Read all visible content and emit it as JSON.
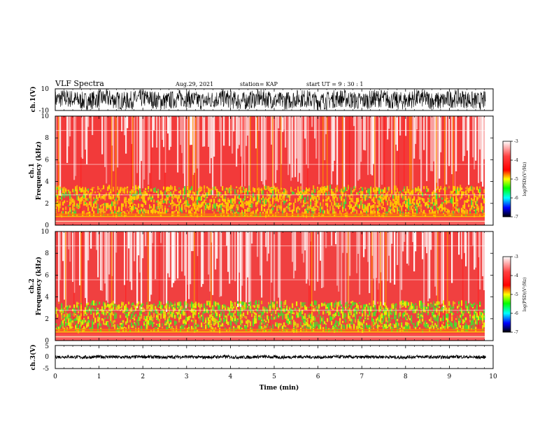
{
  "header": {
    "title": "VLF Spectra",
    "date": "Aug.29, 2021",
    "station": "station= KAP",
    "start": "start  UT =   9 : 30 : 1"
  },
  "chart_data": [
    {
      "type": "line",
      "name": "ch1-waveform",
      "ylabel": "ch.1(V)",
      "ylim": [
        -10,
        10
      ],
      "yticks": [
        "10",
        "-10"
      ],
      "xlim": [
        0,
        10
      ]
    },
    {
      "type": "heatmap",
      "name": "ch1-spectrogram",
      "ylabel": "ch.1\nFrequency  (kHz)",
      "ylabel_lines": [
        "ch.1",
        "Frequency  (kHz)"
      ],
      "ylim": [
        0,
        10
      ],
      "yticks": [
        "0",
        "2",
        "4",
        "6",
        "8",
        "10"
      ],
      "xlim": [
        0,
        9.83
      ],
      "colorbar": {
        "label": "log(PSD)(V²/Hz)",
        "range": [
          -7,
          -3
        ],
        "ticks": [
          "-3",
          "-4",
          "-5",
          "-6",
          "-7"
        ]
      }
    },
    {
      "type": "heatmap",
      "name": "ch2-spectrogram",
      "ylabel_lines": [
        "ch.2",
        "Frequency  (kHz)"
      ],
      "ylim": [
        0,
        10
      ],
      "yticks": [
        "0",
        "2",
        "4",
        "6",
        "8",
        "10"
      ],
      "xlim": [
        0,
        9.83
      ],
      "colorbar": {
        "label": "log(PSD)(V²/Hz)",
        "range": [
          -7,
          -3
        ],
        "ticks": [
          "-3",
          "-4",
          "-5",
          "-6",
          "-7"
        ]
      }
    },
    {
      "type": "line",
      "name": "ch3-waveform",
      "ylabel": "ch.3(V)",
      "ylim": [
        -5,
        5
      ],
      "yticks": [
        "5",
        "0",
        "-5"
      ],
      "xlim": [
        0,
        10
      ]
    }
  ],
  "xaxis": {
    "label": "Time  (min)",
    "range": [
      0,
      10
    ],
    "ticks": [
      "0",
      "1",
      "2",
      "3",
      "4",
      "5",
      "6",
      "7",
      "8",
      "9",
      "10"
    ]
  },
  "colors": {
    "ch1_spec_bg": "#f23a3a",
    "ch2_spec_bg": "#f04040",
    "waveform": "#000000",
    "colormap": [
      "#ffffff",
      "#ff0000",
      "#ffff00",
      "#00ff00",
      "#00ffff",
      "#0000ff",
      "#000000"
    ]
  }
}
